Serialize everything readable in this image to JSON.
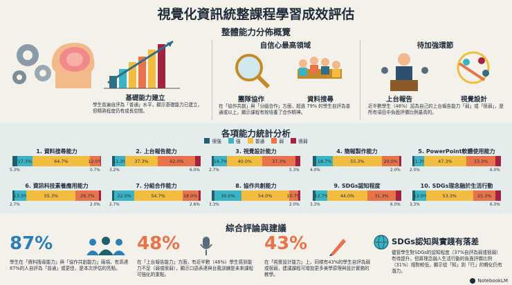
{
  "title": "視覺化資訊統整課程學習成效評估",
  "overview": {
    "title": "整體能力分佈概覽",
    "panels": [
      {
        "heading": "",
        "labels": [
          "基礎能力建立"
        ],
        "text": "學生普遍自評為「普通」水平，顯示基礎能力已建立，但精熟程度仍有成長空間。",
        "icon": "brain-gears-chart-illustration"
      },
      {
        "heading": "自信心最高領域",
        "labels": [
          "團隊協作",
          "資料搜尋"
        ],
        "text": "在「協作共創」與「分組合作」方面，超過 79% 的學生自評為普通或以上，顯示課程有效培養了合作精神。",
        "icon": "magnifier-team-illustration"
      },
      {
        "heading": "待加強環節",
        "labels": [
          "上台報告",
          "視覺設計"
        ],
        "text": "近半數學生（48%）認為自己的上台報告能力「弱」或「很弱」，是所有項目中負面評價比例最高的。",
        "icon": "presenter-design-illustration"
      }
    ]
  },
  "stats": {
    "title": "各項能力統計分析",
    "legend": [
      {
        "label": "很強",
        "color": "#1f5f6e"
      },
      {
        "label": "強",
        "color": "#3bb3c3"
      },
      {
        "label": "普通",
        "color": "#f2bd3e"
      },
      {
        "label": "弱",
        "color": "#e8734a"
      },
      {
        "label": "很弱",
        "color": "#a3223f"
      }
    ],
    "items": [
      {
        "name": "1. 資料搜尋能力",
        "values": [
          5.3,
          17.3,
          64.7,
          12.0,
          0.7
        ],
        "labels": [
          "5.3%",
          "17.3%",
          "64.7%",
          "12.0%",
          "0.7%"
        ]
      },
      {
        "name": "2. 上台報告能力",
        "values": [
          3.2,
          11.3,
          37.3,
          42.0,
          6.0
        ],
        "labels": [
          "3.2%",
          "11.3%",
          "37.3%",
          "42.0%",
          "6.0%"
        ]
      },
      {
        "name": "3. 視覺設計能力",
        "values": [
          2.7,
          14.7,
          40.0,
          37.3,
          5.3
        ],
        "labels": [
          "2.7%",
          "14.7%",
          "40.0%",
          "37.3%",
          "5.3%"
        ]
      },
      {
        "name": "4. 簡報製作能力",
        "values": [
          4.0,
          18.7,
          55.3,
          20.0,
          2.0
        ],
        "labels": [
          "4.0%",
          "18.7%",
          "55.3%",
          "20.0%",
          "2.0%"
        ]
      },
      {
        "name": "5. PowerPoint軟體使用能力",
        "values": [
          2.0,
          11.3,
          47.3,
          33.3,
          6.0
        ],
        "labels": [
          "2.0%",
          "11.3%",
          "47.3%",
          "33.3%",
          "6.0%"
        ]
      },
      {
        "name": "6. 資訊科技素養應用能力",
        "values": [
          2.7,
          13.3,
          55.3,
          26.7,
          2.0
        ],
        "labels": [
          "2.7%",
          "13.3%",
          "55.3%",
          "26.7%",
          "2.0%"
        ]
      },
      {
        "name": "7. 分組合作能力",
        "values": [
          2.7,
          22.0,
          54.7,
          18.0,
          2.6
        ],
        "labels": [
          "2.7%",
          "22.0%",
          "54.7%",
          "18.0%",
          "2.6%"
        ]
      },
      {
        "name": "8. 協作共創能力",
        "values": [
          3.3,
          30.0,
          54.0,
          10.7,
          2.0
        ],
        "labels": [
          "3.3%",
          "30.0%",
          "54.0%",
          "10.7%",
          "2.0%"
        ]
      },
      {
        "name": "9. SDGs認知程度",
        "values": [
          3.3,
          12.7,
          44.0,
          31.3,
          6.0
        ],
        "labels": [
          "3.3%",
          "12.7%",
          "44.0%",
          "31.3%",
          "6.0%"
        ]
      },
      {
        "name": "10. SDGs理念融於生活行動",
        "values": [
          3.3,
          12.0,
          53.3,
          25.3,
          6.0
        ],
        "labels": [
          "3.3%",
          "12.0%",
          "53.3%",
          "25.3%",
          "6.0%"
        ]
      }
    ]
  },
  "summary": {
    "title": "綜合評論與建議",
    "cards": [
      {
        "pct": "87%",
        "color": "#2a7fb8",
        "text": "學生在「資料搜尋能力」與「協作共創能力」兩項，有高達87%的人自評為「普通」或更佳，是本次評估的亮點。",
        "icon": "team-people-icon"
      },
      {
        "pct": "48%",
        "color": "#e8734a",
        "text": "在「上台報告能力」方面，有近半數（48%）學生感到能力不足（弱或很弱），顯示口語表達與台風訓練是未來課程可強化的重點。",
        "icon": "microphone-icon"
      },
      {
        "pct": "43%",
        "color": "#e8734a",
        "text": "在「視覺設計能力」上，同樣有43%的學生自評為弱或很弱，建議課程可增加更多美學原理與設計實務的教學。",
        "icon": "design-tools-icon"
      },
      {
        "pct": "",
        "heading": "SDGs認知與實踐有落差",
        "color": "#1d2b3a",
        "text": "儘管學生對SDGs的認知程度（37%自評為弱或很弱）有待提升，但將理念融入生活行動的負面評價比例（31%）相對較低，顯示從「知」到「行」的轉化仍有潛力。",
        "icon": "globe-icon"
      }
    ]
  },
  "footer": {
    "brand": "NotebookLM"
  }
}
